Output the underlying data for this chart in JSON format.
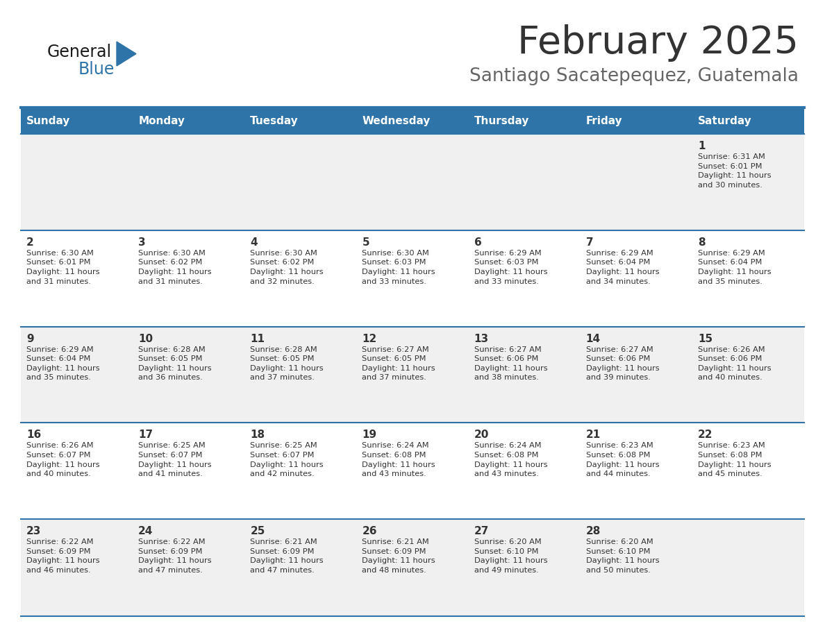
{
  "title": "February 2025",
  "subtitle": "Santiago Sacatepequez, Guatemala",
  "days_of_week": [
    "Sunday",
    "Monday",
    "Tuesday",
    "Wednesday",
    "Thursday",
    "Friday",
    "Saturday"
  ],
  "header_bg": "#2E74A8",
  "header_text": "#FFFFFF",
  "row_bg_odd": "#F0F0F0",
  "row_bg_even": "#FFFFFF",
  "cell_border": "#2E74A8",
  "day_number_color": "#333333",
  "info_text_color": "#333333",
  "title_color": "#333333",
  "subtitle_color": "#666666",
  "logo_general_color": "#1a1a1a",
  "logo_blue_color": "#2E74A8",
  "logo_triangle_color": "#2E74A8",
  "calendar_data": [
    [
      {
        "day": null,
        "sunrise": null,
        "sunset": null,
        "daylight": null
      },
      {
        "day": null,
        "sunrise": null,
        "sunset": null,
        "daylight": null
      },
      {
        "day": null,
        "sunrise": null,
        "sunset": null,
        "daylight": null
      },
      {
        "day": null,
        "sunrise": null,
        "sunset": null,
        "daylight": null
      },
      {
        "day": null,
        "sunrise": null,
        "sunset": null,
        "daylight": null
      },
      {
        "day": null,
        "sunrise": null,
        "sunset": null,
        "daylight": null
      },
      {
        "day": 1,
        "sunrise": "6:31 AM",
        "sunset": "6:01 PM",
        "daylight": "11 hours\nand 30 minutes."
      }
    ],
    [
      {
        "day": 2,
        "sunrise": "6:30 AM",
        "sunset": "6:01 PM",
        "daylight": "11 hours\nand 31 minutes."
      },
      {
        "day": 3,
        "sunrise": "6:30 AM",
        "sunset": "6:02 PM",
        "daylight": "11 hours\nand 31 minutes."
      },
      {
        "day": 4,
        "sunrise": "6:30 AM",
        "sunset": "6:02 PM",
        "daylight": "11 hours\nand 32 minutes."
      },
      {
        "day": 5,
        "sunrise": "6:30 AM",
        "sunset": "6:03 PM",
        "daylight": "11 hours\nand 33 minutes."
      },
      {
        "day": 6,
        "sunrise": "6:29 AM",
        "sunset": "6:03 PM",
        "daylight": "11 hours\nand 33 minutes."
      },
      {
        "day": 7,
        "sunrise": "6:29 AM",
        "sunset": "6:04 PM",
        "daylight": "11 hours\nand 34 minutes."
      },
      {
        "day": 8,
        "sunrise": "6:29 AM",
        "sunset": "6:04 PM",
        "daylight": "11 hours\nand 35 minutes."
      }
    ],
    [
      {
        "day": 9,
        "sunrise": "6:29 AM",
        "sunset": "6:04 PM",
        "daylight": "11 hours\nand 35 minutes."
      },
      {
        "day": 10,
        "sunrise": "6:28 AM",
        "sunset": "6:05 PM",
        "daylight": "11 hours\nand 36 minutes."
      },
      {
        "day": 11,
        "sunrise": "6:28 AM",
        "sunset": "6:05 PM",
        "daylight": "11 hours\nand 37 minutes."
      },
      {
        "day": 12,
        "sunrise": "6:27 AM",
        "sunset": "6:05 PM",
        "daylight": "11 hours\nand 37 minutes."
      },
      {
        "day": 13,
        "sunrise": "6:27 AM",
        "sunset": "6:06 PM",
        "daylight": "11 hours\nand 38 minutes."
      },
      {
        "day": 14,
        "sunrise": "6:27 AM",
        "sunset": "6:06 PM",
        "daylight": "11 hours\nand 39 minutes."
      },
      {
        "day": 15,
        "sunrise": "6:26 AM",
        "sunset": "6:06 PM",
        "daylight": "11 hours\nand 40 minutes."
      }
    ],
    [
      {
        "day": 16,
        "sunrise": "6:26 AM",
        "sunset": "6:07 PM",
        "daylight": "11 hours\nand 40 minutes."
      },
      {
        "day": 17,
        "sunrise": "6:25 AM",
        "sunset": "6:07 PM",
        "daylight": "11 hours\nand 41 minutes."
      },
      {
        "day": 18,
        "sunrise": "6:25 AM",
        "sunset": "6:07 PM",
        "daylight": "11 hours\nand 42 minutes."
      },
      {
        "day": 19,
        "sunrise": "6:24 AM",
        "sunset": "6:08 PM",
        "daylight": "11 hours\nand 43 minutes."
      },
      {
        "day": 20,
        "sunrise": "6:24 AM",
        "sunset": "6:08 PM",
        "daylight": "11 hours\nand 43 minutes."
      },
      {
        "day": 21,
        "sunrise": "6:23 AM",
        "sunset": "6:08 PM",
        "daylight": "11 hours\nand 44 minutes."
      },
      {
        "day": 22,
        "sunrise": "6:23 AM",
        "sunset": "6:08 PM",
        "daylight": "11 hours\nand 45 minutes."
      }
    ],
    [
      {
        "day": 23,
        "sunrise": "6:22 AM",
        "sunset": "6:09 PM",
        "daylight": "11 hours\nand 46 minutes."
      },
      {
        "day": 24,
        "sunrise": "6:22 AM",
        "sunset": "6:09 PM",
        "daylight": "11 hours\nand 47 minutes."
      },
      {
        "day": 25,
        "sunrise": "6:21 AM",
        "sunset": "6:09 PM",
        "daylight": "11 hours\nand 47 minutes."
      },
      {
        "day": 26,
        "sunrise": "6:21 AM",
        "sunset": "6:09 PM",
        "daylight": "11 hours\nand 48 minutes."
      },
      {
        "day": 27,
        "sunrise": "6:20 AM",
        "sunset": "6:10 PM",
        "daylight": "11 hours\nand 49 minutes."
      },
      {
        "day": 28,
        "sunrise": "6:20 AM",
        "sunset": "6:10 PM",
        "daylight": "11 hours\nand 50 minutes."
      },
      {
        "day": null,
        "sunrise": null,
        "sunset": null,
        "daylight": null
      }
    ]
  ]
}
